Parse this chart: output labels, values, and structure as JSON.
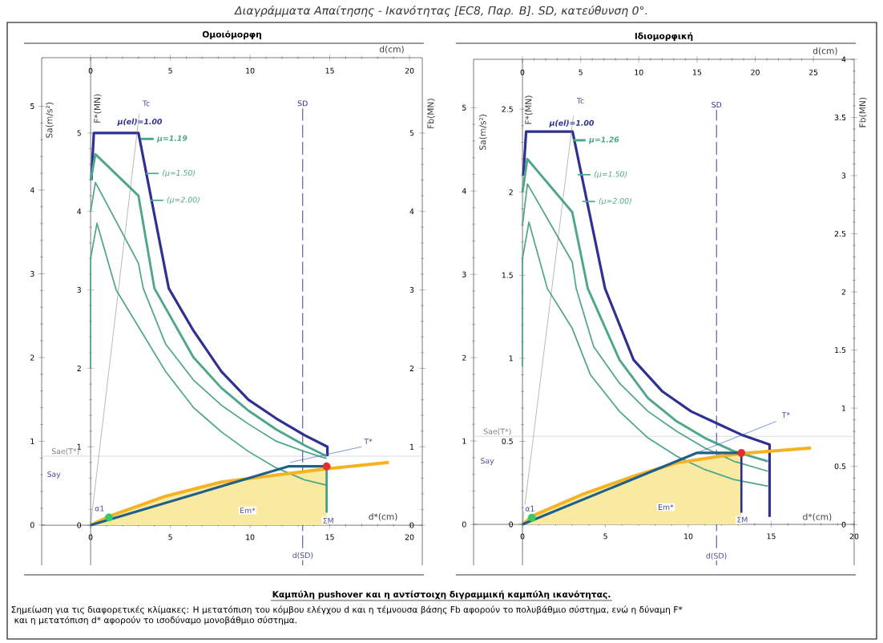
{
  "chart_data": [
    {
      "type": "line",
      "title": "Ομοιόμορφη",
      "xlabel": "d*(cm)",
      "ylabel": "F*(MN)",
      "y2label": "Fb(MN)",
      "y3label": "Sa(m/s²)",
      "x2label": "d(cm)",
      "xlim": [
        -3.07,
        20.8
      ],
      "xticks": [
        0,
        5,
        10,
        15,
        20
      ],
      "ylim": [
        -0.51,
        5.96
      ],
      "yticks": [
        0,
        1,
        2,
        3,
        4,
        5
      ],
      "y2lim": [
        -0.51,
        5.96
      ],
      "y2ticks": [
        0,
        1,
        2,
        3,
        4,
        5
      ],
      "y3lim": [
        -0.48,
        5.58
      ],
      "y3ticks": [
        0,
        1,
        2,
        3,
        4,
        5
      ],
      "x2lim": [
        -3.07,
        20.8
      ],
      "x2ticks": [
        0,
        5,
        10,
        15,
        20
      ],
      "legend": "top left",
      "series": [
        {
          "name": "μ(el)=1.00",
          "color": "#2e3192",
          "x": [
            0.05,
            0.2,
            3.0,
            4.9,
            6.45,
            8.2,
            9.9,
            11.65,
            13.4,
            14.85,
            14.85
          ],
          "values": [
            4.4,
            5.0,
            5.0,
            3.02,
            2.48,
            1.96,
            1.6,
            1.36,
            1.15,
            1.0,
            0.88
          ]
        },
        {
          "name": "μ=1.19",
          "color": "#4fa68c",
          "x": [
            0,
            0.3,
            3.0,
            4.0,
            6.45,
            8.2,
            9.9,
            11.65,
            13.4,
            14.8
          ],
          "values": [
            4.4,
            4.73,
            4.2,
            3.02,
            2.14,
            1.75,
            1.46,
            1.22,
            1.02,
            0.88
          ]
        },
        {
          "name": "(μ=1.50)",
          "color": "#4fa68c",
          "x": [
            0,
            0.3,
            3.0,
            3.3,
            4.7,
            6.45,
            8.2,
            9.9,
            11.65,
            13.4,
            14.8
          ],
          "values": [
            4.0,
            4.37,
            3.34,
            3.02,
            2.31,
            1.85,
            1.53,
            1.29,
            1.07,
            0.94,
            0.85
          ]
        },
        {
          "name": "(μ=2.00)",
          "color": "#4fa68c",
          "x": [
            0,
            0,
            0.4,
            1.6,
            3.0,
            4.7,
            6.45,
            8.2,
            9.9,
            11.65,
            13.4,
            14.8
          ],
          "values": [
            2.0,
            3.4,
            3.85,
            3.0,
            2.53,
            1.96,
            1.5,
            1.19,
            0.94,
            0.73,
            0.58,
            0.51
          ]
        },
        {
          "color": "#7a7a7a",
          "x": [
            0,
            3.05
          ],
          "values": [
            0,
            5.25
          ]
        },
        {
          "color": "#3a5fcd",
          "x": [
            12.5,
            17.0
          ],
          "values": [
            0.8,
            1.0
          ]
        },
        {
          "type": "area",
          "color": "#f8eaa0",
          "x": [
            0,
            1.25,
            4.7,
            8.2,
            11.65,
            14.8
          ],
          "values": [
            0,
            0.12,
            0.37,
            0.55,
            0.64,
            0.72
          ]
        },
        {
          "color": "#f5b324",
          "x": [
            0,
            1.25,
            4.7,
            8.2,
            11.65,
            14.8,
            18.7
          ],
          "values": [
            0,
            0.12,
            0.37,
            0.55,
            0.64,
            0.72,
            0.8
          ]
        },
        {
          "color": "#1f5f8b",
          "x": [
            0,
            12.4,
            14.8
          ],
          "values": [
            0,
            0.75,
            0.75
          ]
        },
        {
          "color": "#3f9a88",
          "x": [
            14.8,
            14.8
          ],
          "values": [
            0.75,
            0.16
          ]
        },
        {
          "type": "scatter",
          "color": "#e03030",
          "x": [
            14.8
          ],
          "values": [
            0.75
          ]
        },
        {
          "type": "scatter",
          "color": "#33cc66",
          "x": [
            1.15
          ],
          "values": [
            0.1
          ]
        }
      ],
      "ref_lines": [
        {
          "axis": "y",
          "value": 0.88,
          "label": "Sae(T*)",
          "color": "#c8c8c8"
        },
        {
          "axis": "x",
          "value": 13.3,
          "label": "SD",
          "color": "#2e3192",
          "line_style": "dashed"
        }
      ],
      "annotations": [
        "Διαγράμματα Απαίτησης - Ικανότητας [EC8, Παρ. B]. SD, κατεύθυνση 0°.",
        "Καμπύλη pushover και η αντίστοιχη διγραμμική καμπύλη ικανότητας.",
        "Σημείωση για τις διαφορετικές κλίμακες: Η μετατόπιση του κόμβου ελέγχου d και η τέμνουσα βάσης Fb αφορούν το πολυβάθμιο σύστημα, ενώ η δύναμη F*",
        "και η μετατόπιση d* αφορούν το ισοδύναμο μονοβάθμιο σύστημα.",
        "Tc",
        "T*",
        "Em*",
        "ΣM",
        "α1",
        "Say",
        "d(SD)"
      ]
    },
    {
      "type": "line",
      "title": "Ιδιομορφική",
      "xlabel": "d*(cm)",
      "ylabel": "F*(MN)",
      "y2label": "Fb(MN)",
      "y3label": "Sa(m/s²)",
      "x2label": "d(cm)",
      "xlim": [
        -2.95,
        20.0
      ],
      "xticks": [
        0,
        5,
        10,
        15,
        20
      ],
      "ylim": [
        -0.246,
        2.8
      ],
      "yticks": [
        0,
        0.5,
        1,
        1.5,
        2,
        2.5
      ],
      "y2lim": [
        -0.35,
        4.0
      ],
      "y2ticks": [
        0,
        0.5,
        1,
        1.5,
        2,
        2.5,
        3,
        3.5,
        4
      ],
      "y3lim": [
        -0.49,
        5.58
      ],
      "y3ticks": [
        0,
        1,
        2,
        3,
        4,
        5
      ],
      "x2lim": [
        -4.2,
        28.5
      ],
      "x2ticks": [
        0,
        5,
        10,
        15,
        20,
        25
      ],
      "legend": "top left",
      "series": [
        {
          "name": "μ(el)=1.00",
          "color": "#2e3192",
          "x": [
            0.05,
            0.22,
            3.02,
            4.98,
            6.7,
            8.44,
            10.17,
            11.9,
            13.2,
            14.9,
            14.9
          ],
          "values": [
            2.1,
            2.365,
            2.365,
            1.42,
            0.99,
            0.8,
            0.68,
            0.6,
            0.54,
            0.48,
            0.045
          ]
        },
        {
          "name": "μ=1.26",
          "color": "#4fa68c",
          "x": [
            0,
            0.29,
            3.0,
            3.94,
            5.85,
            7.57,
            9.3,
            11.0,
            12.75,
            14.8
          ],
          "values": [
            2.0,
            2.2,
            1.88,
            1.42,
            0.99,
            0.76,
            0.62,
            0.52,
            0.44,
            0.38
          ]
        },
        {
          "name": "(μ=1.50)",
          "color": "#4fa68c",
          "x": [
            0,
            0.3,
            3.0,
            3.24,
            4.29,
            5.85,
            7.57,
            9.3,
            11.0,
            12.75,
            14.8
          ],
          "values": [
            1.8,
            2.05,
            1.58,
            1.42,
            1.07,
            0.85,
            0.68,
            0.56,
            0.46,
            0.38,
            0.32
          ]
        },
        {
          "name": "(μ=2.00)",
          "color": "#4fa68c",
          "x": [
            0,
            0,
            0.39,
            1.5,
            3.0,
            4.1,
            5.85,
            7.57,
            9.3,
            11.0,
            12.75,
            14.8
          ],
          "values": [
            0.95,
            1.6,
            1.82,
            1.42,
            1.18,
            0.9,
            0.68,
            0.52,
            0.41,
            0.33,
            0.27,
            0.23
          ]
        },
        {
          "color": "#7a7a7a",
          "x": [
            0,
            3.07
          ],
          "values": [
            0,
            2.46
          ]
        },
        {
          "color": "#3a5fcd",
          "x": [
            10.5,
            15.3
          ],
          "values": [
            0.43,
            0.62
          ]
        },
        {
          "type": "area",
          "color": "#f8eaa0",
          "x": [
            0,
            0.6,
            3.6,
            6.7,
            9.3,
            11.9,
            13.2
          ],
          "values": [
            0,
            0.05,
            0.18,
            0.29,
            0.37,
            0.41,
            0.425
          ]
        },
        {
          "color": "#f5b324",
          "x": [
            0,
            0.6,
            3.6,
            6.7,
            9.3,
            11.9,
            13.6,
            17.4
          ],
          "values": [
            0,
            0.05,
            0.18,
            0.29,
            0.37,
            0.41,
            0.43,
            0.46
          ]
        },
        {
          "color": "#1f5f8b",
          "x": [
            0,
            10.5,
            13.2
          ],
          "values": [
            0,
            0.43,
            0.43
          ]
        },
        {
          "color": "#2e3192",
          "x": [
            13.2,
            13.2
          ],
          "values": [
            0.43,
            0.07
          ]
        },
        {
          "type": "scatter",
          "color": "#e03030",
          "x": [
            13.2
          ],
          "values": [
            0.43
          ]
        },
        {
          "type": "scatter",
          "color": "#33cc66",
          "x": [
            0.56
          ],
          "values": [
            0.04
          ]
        }
      ],
      "ref_lines": [
        {
          "axis": "y",
          "value": 0.53,
          "label": "Sae(T*)",
          "color": "#c8c8c8"
        },
        {
          "axis": "x",
          "value": 11.7,
          "label": "SD",
          "color": "#2e3192",
          "line_style": "dashed"
        }
      ],
      "annotations": [
        "Tc",
        "T*",
        "Em*",
        "ΣM",
        "α1",
        "Say",
        "d(SD)"
      ]
    }
  ]
}
